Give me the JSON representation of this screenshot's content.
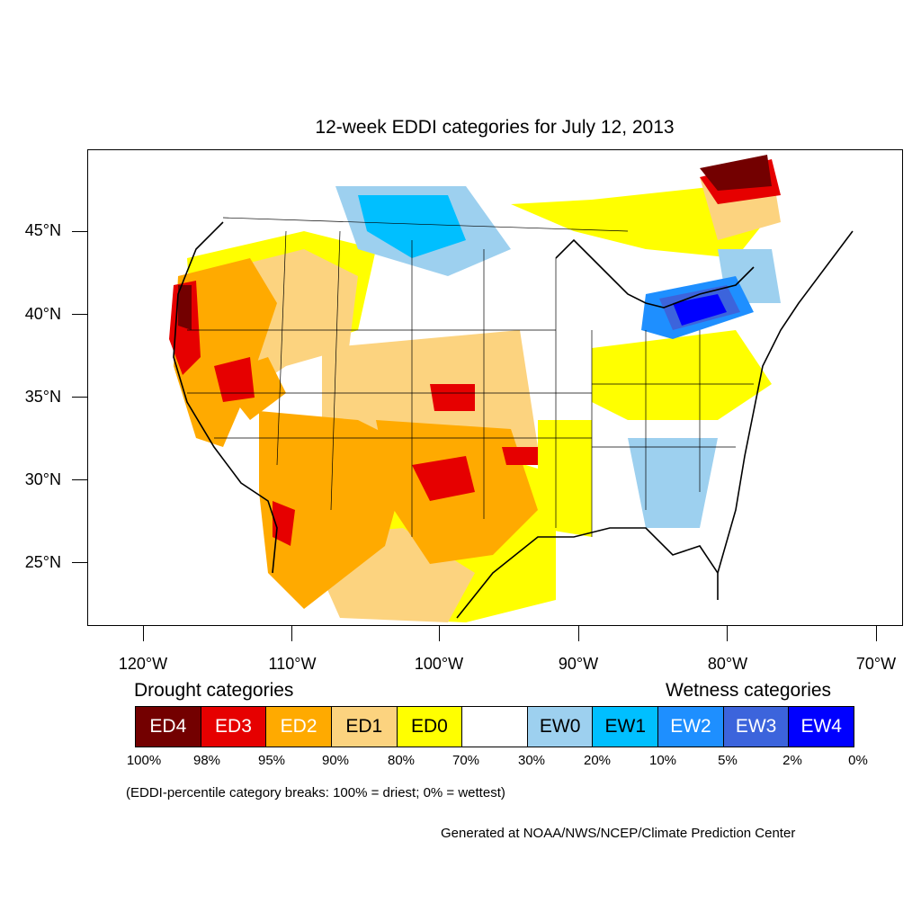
{
  "title": "12-week EDDI categories for July 12, 2013",
  "map": {
    "latitude_labels": [
      "45°N",
      "40°N",
      "35°N",
      "30°N",
      "25°N"
    ],
    "longitude_labels": [
      "120°W",
      "110°W",
      "100°W",
      "90°W",
      "80°W",
      "70°W"
    ],
    "region": "Contiguous United States"
  },
  "legend": {
    "drought_heading": "Drought categories",
    "wetness_heading": "Wetness categories",
    "categories": [
      {
        "label": "ED4",
        "color": "#730000",
        "text_color": "#ffffff"
      },
      {
        "label": "ED3",
        "color": "#e60000",
        "text_color": "#ffffff"
      },
      {
        "label": "ED2",
        "color": "#ffaa00",
        "text_color": "#ffffff"
      },
      {
        "label": "ED1",
        "color": "#fcd37f",
        "text_color": "#000000"
      },
      {
        "label": "ED0",
        "color": "#ffff00",
        "text_color": "#000000"
      },
      {
        "label": "",
        "color": "#ffffff",
        "text_color": "#000000"
      },
      {
        "label": "EW0",
        "color": "#9dd0ef",
        "text_color": "#000000"
      },
      {
        "label": "EW1",
        "color": "#00bfff",
        "text_color": "#000000"
      },
      {
        "label": "EW2",
        "color": "#1e8fff",
        "text_color": "#ffffff"
      },
      {
        "label": "EW3",
        "color": "#3c64dc",
        "text_color": "#ffffff"
      },
      {
        "label": "EW4",
        "color": "#0000ff",
        "text_color": "#ffffff"
      }
    ],
    "percent_breaks": [
      "100%",
      "98%",
      "95%",
      "90%",
      "80%",
      "70%",
      "30%",
      "20%",
      "10%",
      "5%",
      "2%",
      "0%"
    ]
  },
  "note": "(EDDI-percentile category breaks: 100% = driest; 0% = wettest)",
  "credit": "Generated at NOAA/NWS/NCEP/Climate Prediction Center"
}
